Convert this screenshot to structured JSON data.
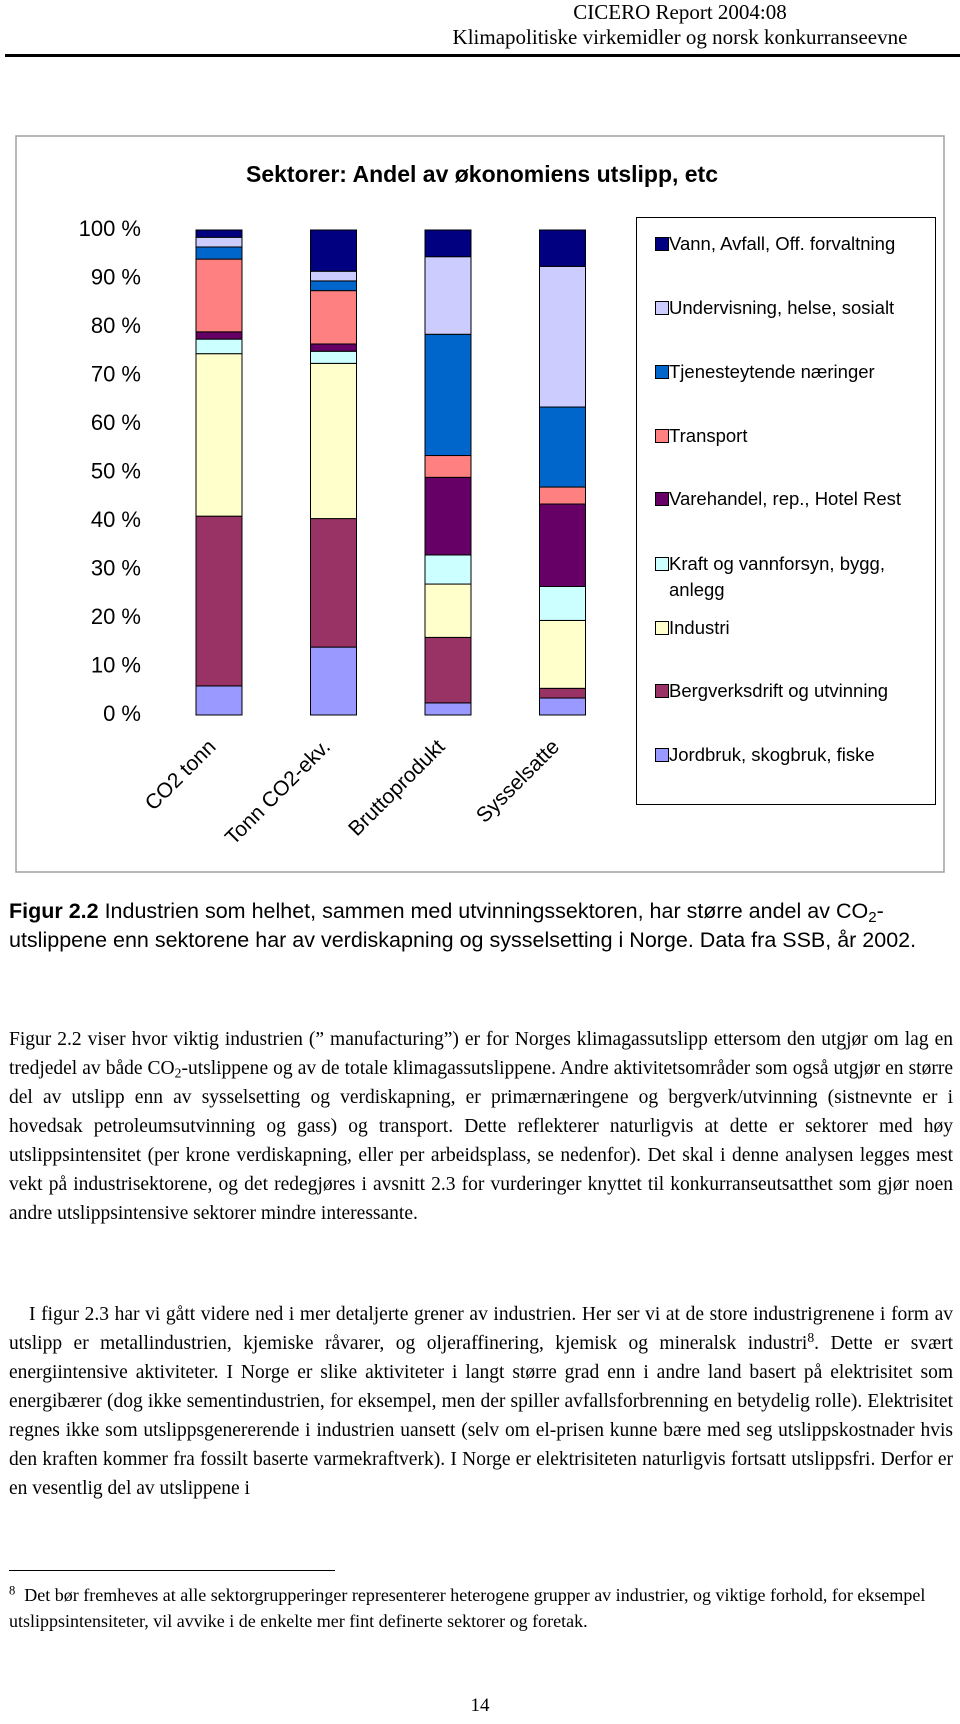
{
  "header": {
    "report": "CICERO Report 2004:08",
    "subtitle": "Klimapolitiske virkemidler og norsk konkurranseevne"
  },
  "chart_data": {
    "type": "stacked_bar",
    "title": "Sektorer: Andel av økonomiens utslipp, etc",
    "categories": [
      "CO2 tonn",
      "Tonn CO2-ekv.",
      "Bruttoprodukt",
      "Sysselsatte"
    ],
    "series": [
      {
        "name": "Jordbruk, skogbruk, fiske",
        "color": "#9999ff",
        "values": [
          6,
          14,
          2.5,
          3.5
        ]
      },
      {
        "name": "Bergverksdrift og utvinning",
        "color": "#993366",
        "values": [
          35,
          26.5,
          13.5,
          2
        ]
      },
      {
        "name": "Industri",
        "color": "#ffffcc",
        "values": [
          33.5,
          32,
          11,
          14
        ]
      },
      {
        "name": "Kraft og vannforsyn, bygg, anlegg",
        "color": "#ccffff",
        "values": [
          3,
          2.5,
          6,
          7
        ]
      },
      {
        "name": "Varehandel, rep., Hotel Rest",
        "color": "#660066",
        "values": [
          1.5,
          1.5,
          16,
          17
        ]
      },
      {
        "name": "Transport",
        "color": "#ff8080",
        "values": [
          15,
          11,
          4.5,
          3.5
        ]
      },
      {
        "name": "Tjenesteytende næringer",
        "color": "#0066cc",
        "values": [
          2.5,
          2,
          25,
          16.5
        ]
      },
      {
        "name": "Undervisning, helse, sosialt",
        "color": "#ccccff",
        "values": [
          2,
          2,
          16,
          29
        ]
      },
      {
        "name": "Vann, Avfall, Off. forvaltning",
        "color": "#000080",
        "values": [
          1.5,
          8.5,
          5.5,
          7.5
        ]
      }
    ],
    "ylim": [
      0,
      100
    ],
    "yticks": [
      {
        "value": 0,
        "label": "0 %"
      },
      {
        "value": 10,
        "label": "10 %"
      },
      {
        "value": 20,
        "label": "20 %"
      },
      {
        "value": 30,
        "label": "30 %"
      },
      {
        "value": 40,
        "label": "40 %"
      },
      {
        "value": 50,
        "label": "50 %"
      },
      {
        "value": 60,
        "label": "60 %"
      },
      {
        "value": 70,
        "label": "70 %"
      },
      {
        "value": 80,
        "label": "80 %"
      },
      {
        "value": 90,
        "label": "90 %"
      },
      {
        "value": 100,
        "label": "100 %"
      }
    ],
    "legend": "right"
  },
  "caption": {
    "label": "Figur 2.2",
    "text_a": " Industrien som helhet, sammen med utvinningssektoren, har større andel av CO",
    "sub": "2",
    "text_b": "-utslippene enn sektorene har av verdiskapning og sysselsetting i Norge. Data fra SSB, år 2002."
  },
  "body": {
    "p1": {
      "text_a": "Figur 2.2 viser hvor viktig industrien (” manufacturing”) er for Norges klimagassutslipp ettersom den utgjør om lag en tredjedel av både CO",
      "sub": "2",
      "text_b": "-utslippene og av de totale klimagassutslippene. Andre aktivitetsområder som også utgjør en større del av utslipp enn av sysselsetting og verdiskapning, er primærnæringene og bergverk/utvinning (sistnevnte er i hovedsak petroleumsutvinning og gass) og transport. Dette reflekterer naturligvis at dette er sektorer med høy utslippsintensitet (per krone verdiskapning, eller per arbeidsplass, se nedenfor). Det skal i denne analysen legges mest vekt på industrisektorene, og det redegjøres i avsnitt 2.3 for vurderinger knyttet til konkurranseutsatthet som gjør noen andre utslippsintensive sektorer mindre interessante."
    },
    "p2": {
      "text_a": "I figur 2.3 har vi gått videre ned i mer detaljerte grener av industrien. Her ser vi at de store industrigrenene i form av utslipp er metallindustrien, kjemiske råvarer, og oljeraffinering, kjemisk og mineralsk industri",
      "sup": "8",
      "text_b": ". Dette er svært energiintensive aktiviteter. I Norge er slike aktiviteter i langt større grad enn i andre land basert på elektrisitet som energibærer (dog ikke sementindustrien, for eksempel, men der spiller avfallsforbrenning en betydelig rolle). Elektrisitet regnes ikke som utslippsgenererende i industrien uansett (selv om el-prisen kunne bære med seg utslippskostnader hvis den kraften kommer fra fossilt baserte varmekraftverk). I Norge er elektrisiteten naturligvis fortsatt utslippsfri. Derfor er en vesentlig del av utslippene i"
    }
  },
  "footnote": {
    "marker": "8",
    "text": "Det bør fremheves at alle sektorgrupperinger representerer heterogene grupper av industrier, og viktige forhold, for eksempel utslippsintensiteter, vil avvike i de enkelte mer fint definerte sektorer og foretak."
  },
  "page_number": "14"
}
